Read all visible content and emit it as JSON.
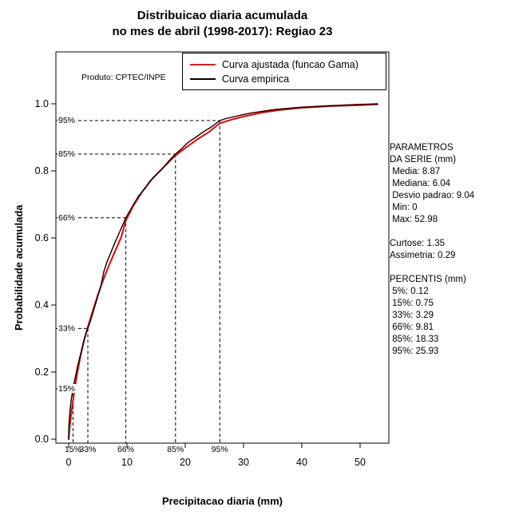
{
  "title": {
    "line1": "Distribuicao diaria acumulada",
    "line2": "no mes de abril (1998-2017): Regiao 23"
  },
  "stats_panel": {
    "lines": [
      "PARAMETROS",
      "DA SERIE (mm)",
      " Media: 8.87",
      " Mediana: 6.04",
      " Desvio padrao: 9.04",
      " Min: 0",
      " Max: 52.98",
      "",
      "Curtose: 1.35",
      "Assimetria: 0.29",
      "",
      "PERCENTIS (mm)",
      " 5%: 0.12",
      " 15%: 0.75",
      " 33%: 3.29",
      " 66%: 9.81",
      " 85%: 18.33",
      " 95%: 25.93"
    ]
  },
  "chart_data": {
    "type": "line",
    "title": "Distribuicao diaria acumulada no mes de abril (1998-2017): Regiao 23",
    "xlabel": "Precipitacao diaria (mm)",
    "ylabel": "Probabilidade acumulada",
    "annotation": "Produto: CPTEC/INPE",
    "xlim": [
      0,
      52.98
    ],
    "ylim": [
      0,
      1
    ],
    "grid": false,
    "axis_color": "#000000",
    "xticks": {
      "values": [
        0,
        10,
        20,
        30,
        40,
        50
      ],
      "labels": [
        "0",
        "10",
        "20",
        "30",
        "40",
        "50"
      ]
    },
    "yticks": {
      "values": [
        0,
        0.2,
        0.4,
        0.6,
        0.8,
        1.0
      ],
      "labels": [
        "0.0",
        "0.2",
        "0.4",
        "0.6",
        "0.8",
        "1.0"
      ]
    },
    "legend": {
      "position": "top-right",
      "entries": [
        {
          "label": "Curva ajustada (funcao Gama)",
          "color": "#ee0000"
        },
        {
          "label": "Curva empirica",
          "color": "#000000"
        }
      ]
    },
    "percentile_guides": [
      {
        "label": "15%",
        "p": 0.15,
        "x": 0.75
      },
      {
        "label": "33%",
        "p": 0.33,
        "x": 3.29
      },
      {
        "label": "66%",
        "p": 0.66,
        "x": 9.81
      },
      {
        "label": "85%",
        "p": 0.85,
        "x": 18.33
      },
      {
        "label": "95%",
        "p": 0.95,
        "x": 25.93
      }
    ],
    "series": [
      {
        "name": "Curva ajustada (funcao Gama)",
        "color": "#ee0000",
        "width": 2,
        "points": [
          [
            0,
            0
          ],
          [
            0.2,
            0.04
          ],
          [
            0.5,
            0.085
          ],
          [
            0.75,
            0.115
          ],
          [
            1,
            0.148
          ],
          [
            1.5,
            0.2
          ],
          [
            2,
            0.245
          ],
          [
            2.6,
            0.292
          ],
          [
            3.29,
            0.335
          ],
          [
            4,
            0.375
          ],
          [
            5,
            0.43
          ],
          [
            6,
            0.478
          ],
          [
            7,
            0.522
          ],
          [
            8,
            0.562
          ],
          [
            9,
            0.602
          ],
          [
            9.81,
            0.652
          ],
          [
            11,
            0.693
          ],
          [
            12.5,
            0.735
          ],
          [
            14,
            0.77
          ],
          [
            16,
            0.806
          ],
          [
            18.33,
            0.846
          ],
          [
            20,
            0.868
          ],
          [
            22,
            0.893
          ],
          [
            24,
            0.915
          ],
          [
            25.93,
            0.942
          ],
          [
            28,
            0.953
          ],
          [
            30,
            0.962
          ],
          [
            33,
            0.973
          ],
          [
            36,
            0.981
          ],
          [
            40,
            0.988
          ],
          [
            45,
            0.993
          ],
          [
            50,
            0.996
          ],
          [
            52.98,
            0.998
          ]
        ]
      },
      {
        "name": "Curva empirica",
        "color": "#000000",
        "width": 1.4,
        "points": [
          [
            0,
            0
          ],
          [
            0.02,
            0.02
          ],
          [
            0.05,
            0.045
          ],
          [
            0.12,
            0.06
          ],
          [
            0.2,
            0.08
          ],
          [
            0.35,
            0.105
          ],
          [
            0.5,
            0.125
          ],
          [
            0.75,
            0.15
          ],
          [
            0.95,
            0.17
          ],
          [
            1.2,
            0.19
          ],
          [
            1.5,
            0.215
          ],
          [
            1.85,
            0.24
          ],
          [
            2.2,
            0.265
          ],
          [
            2.7,
            0.3
          ],
          [
            3.29,
            0.33
          ],
          [
            3.8,
            0.355
          ],
          [
            4.3,
            0.385
          ],
          [
            4.9,
            0.42
          ],
          [
            5.5,
            0.455
          ],
          [
            6.04,
            0.5
          ],
          [
            6.6,
            0.53
          ],
          [
            7.2,
            0.555
          ],
          [
            7.9,
            0.585
          ],
          [
            8.8,
            0.62
          ],
          [
            9.81,
            0.66
          ],
          [
            10.8,
            0.69
          ],
          [
            12,
            0.725
          ],
          [
            13.2,
            0.75
          ],
          [
            14.5,
            0.78
          ],
          [
            16,
            0.805
          ],
          [
            17.2,
            0.83
          ],
          [
            18.33,
            0.85
          ],
          [
            19.3,
            0.865
          ],
          [
            20.5,
            0.885
          ],
          [
            21.8,
            0.9
          ],
          [
            23,
            0.915
          ],
          [
            24.4,
            0.93
          ],
          [
            25.93,
            0.95
          ],
          [
            27,
            0.956
          ],
          [
            28.5,
            0.962
          ],
          [
            30,
            0.968
          ],
          [
            31.5,
            0.973
          ],
          [
            33,
            0.977
          ],
          [
            34.5,
            0.981
          ],
          [
            36,
            0.984
          ],
          [
            38,
            0.987
          ],
          [
            40,
            0.99
          ],
          [
            42,
            0.992
          ],
          [
            44.5,
            0.994
          ],
          [
            47,
            0.996
          ],
          [
            49.5,
            0.998
          ],
          [
            51.5,
            0.999
          ],
          [
            52.98,
            1.0
          ]
        ]
      }
    ]
  }
}
